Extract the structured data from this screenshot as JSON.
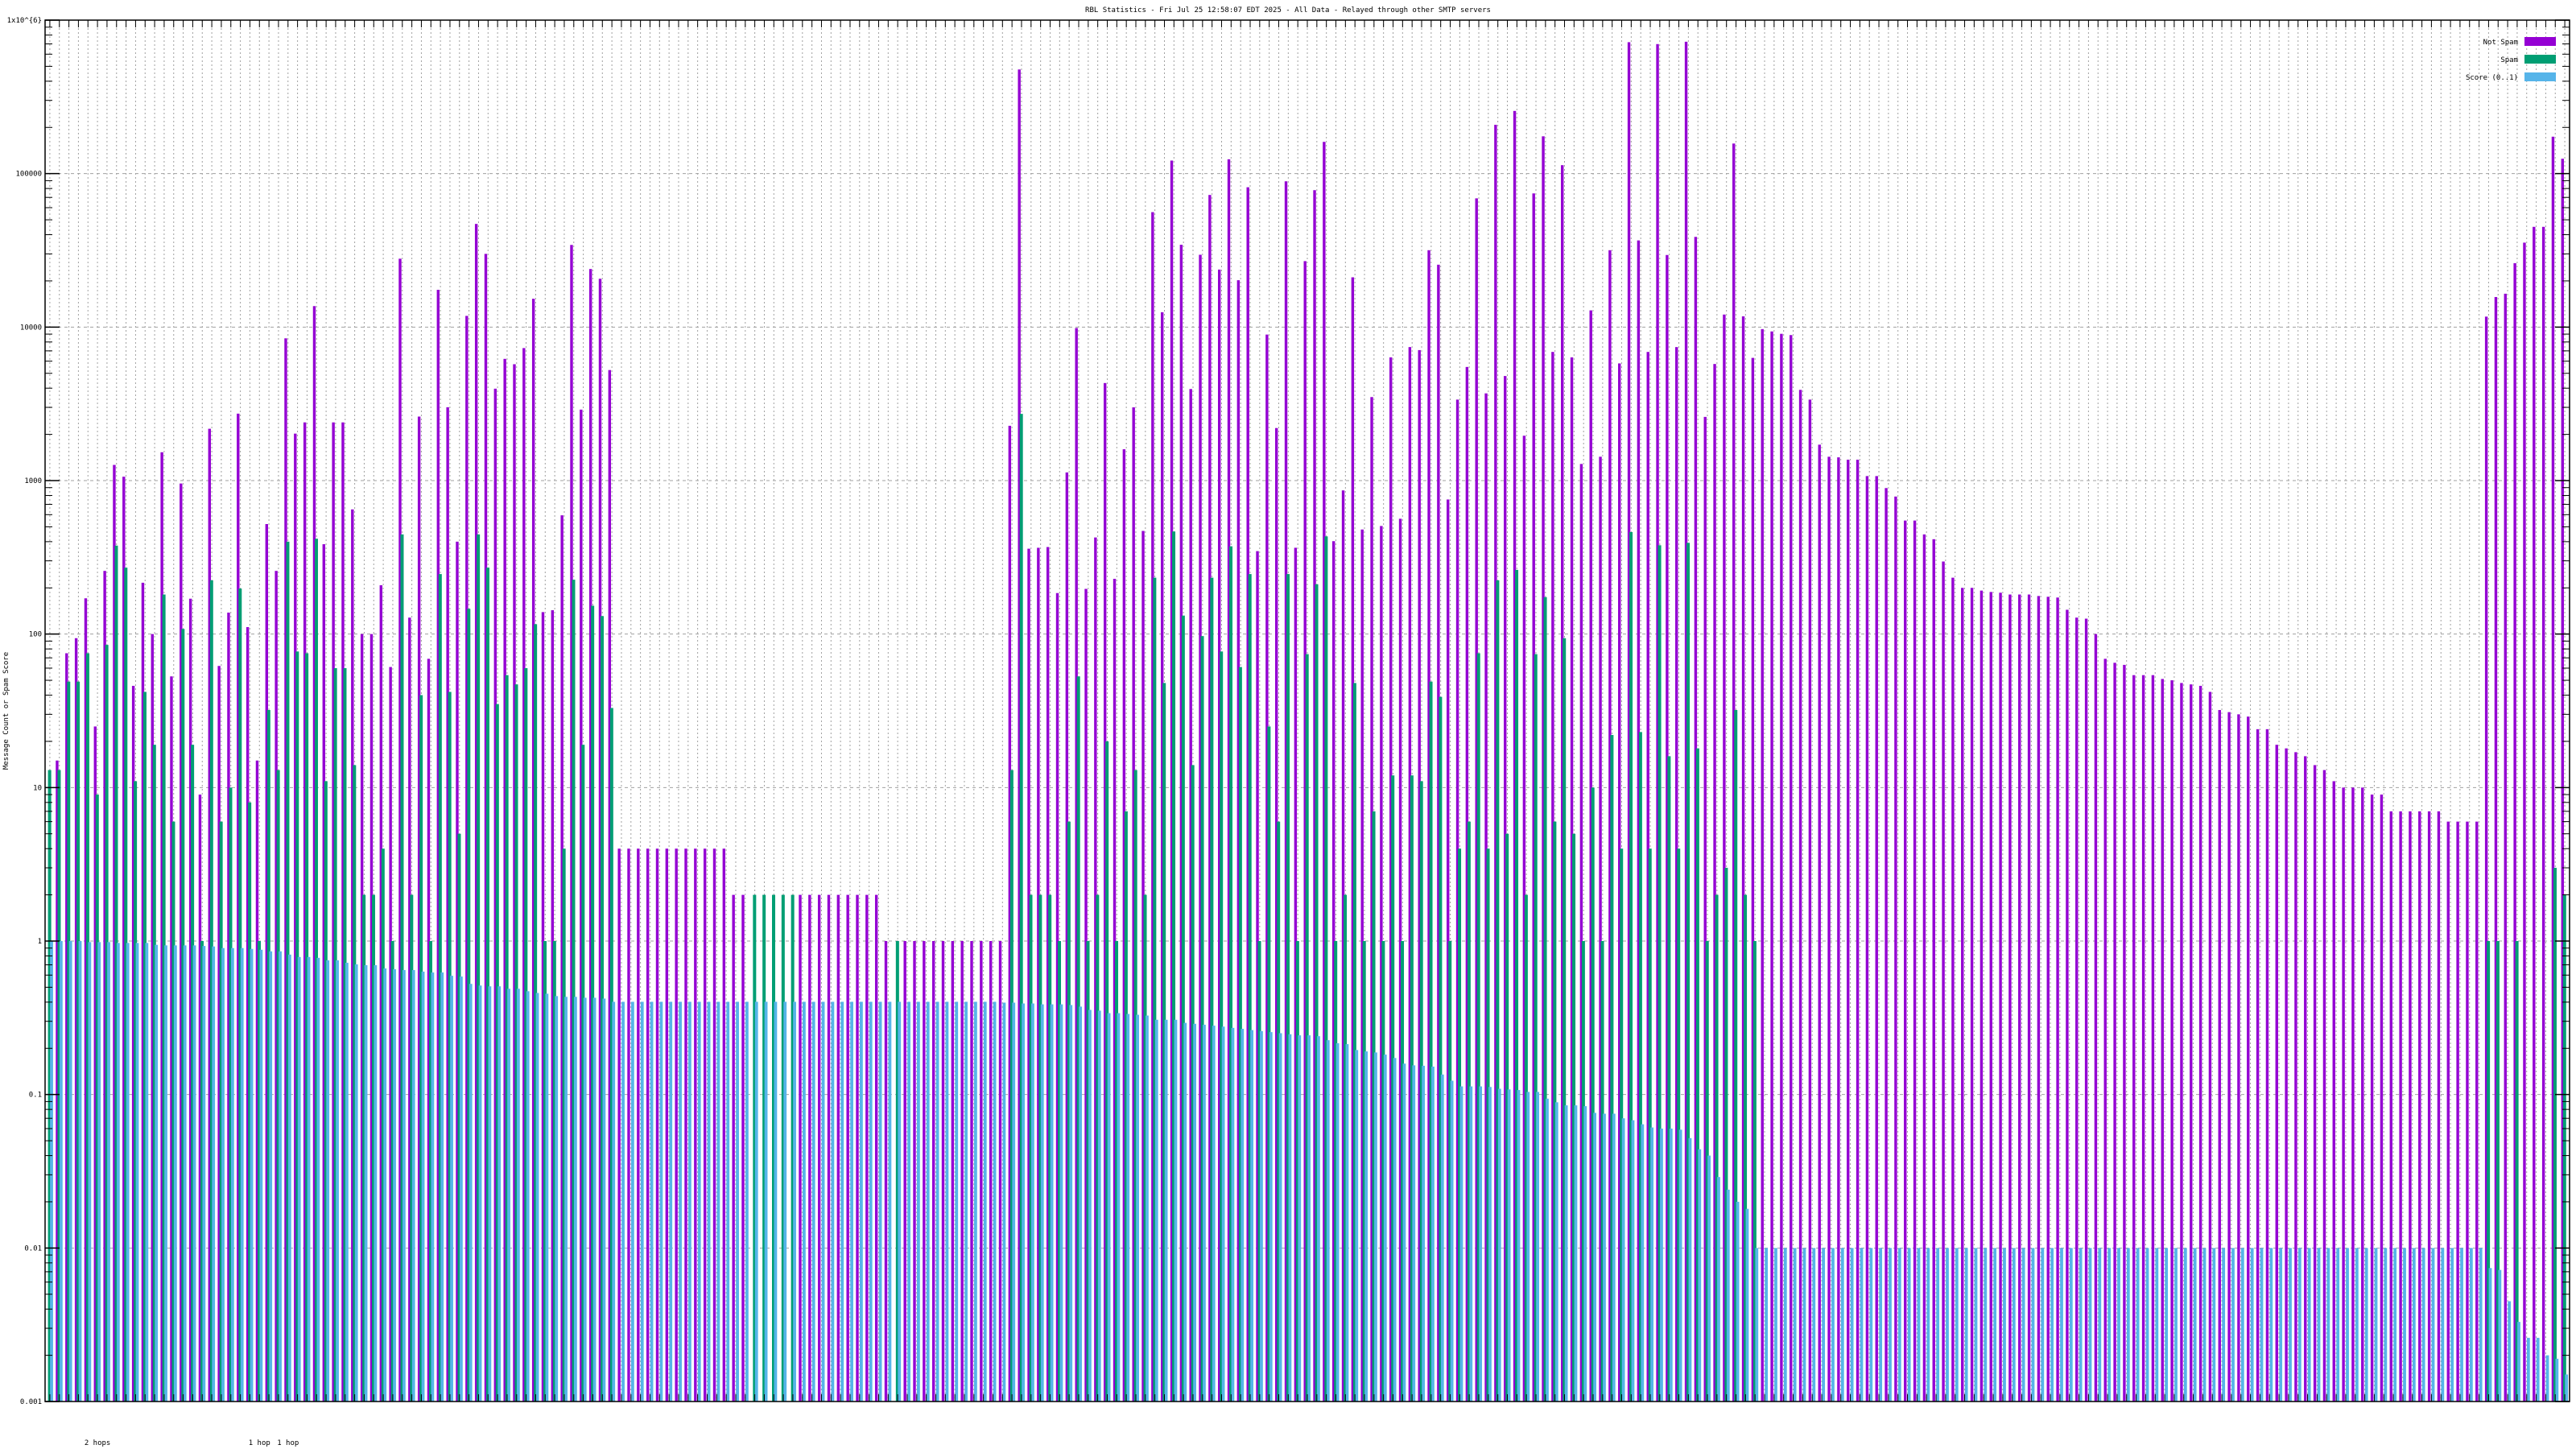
{
  "chart_data": {
    "type": "bar",
    "title": "RBL Statistics - Fri Jul 25 12:58:07 EDT 2025 - All Data - Relayed through other SMTP servers",
    "ylabel": "Message Count or Spam Score",
    "xlabel": "",
    "y_scale": "log",
    "ylim": [
      0.001,
      1000000
    ],
    "y_tick_labels": [
      "0.001",
      "0.01",
      "0.1",
      "1",
      "10",
      "100",
      "1000",
      "10000",
      "100000",
      "1x10^{6}"
    ],
    "grid": true,
    "legend_position": "top-right",
    "x_group_labels": [
      {
        "text": "2 hops",
        "category": 6
      },
      {
        "text": "1 hop",
        "category": 23
      },
      {
        "text": "1 hop",
        "category": 26
      }
    ],
    "colors": {
      "not_spam": "#9400d3",
      "spam": "#009e73",
      "score": "#56b4e9"
    },
    "series": [
      {
        "name": "Not Spam",
        "key": "not_spam",
        "values": [
          null,
          15,
          75,
          94,
          171,
          25,
          258,
          1265,
          1060,
          46,
          216,
          100,
          1530,
          53,
          957,
          170,
          9,
          2176,
          62,
          138,
          2730,
          111,
          15,
          521,
          258,
          8450,
          2023,
          2394,
          13700,
          385,
          2394,
          2394,
          649,
          100,
          100,
          208,
          61,
          27900,
          128,
          2612,
          69,
          17500,
          3006,
          400,
          11830,
          47000,
          30000,
          3970,
          6210,
          5730,
          7300,
          15300,
          139,
          143,
          594,
          34300,
          2900,
          23900,
          20650,
          5250,
          4,
          4,
          4,
          4,
          4,
          4,
          4,
          4,
          4,
          4,
          4,
          4,
          2,
          2,
          null,
          null,
          null,
          null,
          null,
          2,
          2,
          2,
          2,
          2,
          2,
          2,
          2,
          2,
          1,
          null,
          1,
          1,
          1,
          1,
          1,
          1,
          1,
          1,
          1,
          1,
          1,
          2275,
          477000,
          360,
          365,
          369,
          185,
          1130,
          9860,
          197,
          426,
          4320,
          229,
          1600,
          3000,
          470,
          56100,
          12500,
          121600,
          34400,
          3950,
          29600,
          72600,
          23700,
          124000,
          20200,
          81500,
          347,
          8940,
          2200,
          89100,
          365,
          26900,
          78000,
          161000,
          403,
          863,
          21100,
          480,
          3500,
          506,
          6350,
          564,
          7410,
          7080,
          31700,
          25500,
          753,
          3370,
          5500,
          69000,
          3700,
          208000,
          4800,
          256000,
          1960,
          74300,
          175000,
          6890,
          113500,
          6350,
          1283,
          12850,
          1430,
          31700,
          5800,
          718000,
          36700,
          6890,
          698000,
          29500,
          7410,
          723000,
          38700,
          2600,
          5750,
          12070,
          157000,
          11750,
          6300,
          9700,
          9370,
          9040,
          8870,
          3900,
          3370,
          1714,
          1430,
          1417,
          1368,
          1368,
          1070,
          1070,
          894,
          787,
          549,
          549,
          446,
          415,
          297,
          233,
          200,
          200,
          192,
          188,
          186,
          181,
          181,
          181,
          177,
          175,
          173,
          144,
          128,
          126,
          100,
          69,
          65,
          63,
          54,
          54,
          54,
          51,
          50,
          48,
          47,
          46,
          42,
          32,
          31,
          30,
          29,
          24,
          24,
          19,
          18,
          17,
          16,
          14,
          13,
          11,
          10,
          10,
          10,
          9,
          9,
          7,
          7,
          7,
          7,
          7,
          7,
          6,
          6,
          6,
          6,
          11700,
          15700,
          16500,
          26100,
          35500,
          45000,
          45000,
          174000,
          125000
        ]
      },
      {
        "name": "Spam",
        "key": "spam",
        "values": [
          13,
          13,
          49,
          49,
          75,
          9,
          85,
          377,
          271,
          11,
          42,
          19,
          181,
          6,
          108,
          19,
          1,
          224,
          6,
          10,
          198,
          8,
          1,
          32,
          13,
          400,
          77,
          75,
          418,
          11,
          60,
          60,
          14,
          2,
          2,
          4,
          1,
          446,
          2,
          40,
          1,
          246,
          42,
          5,
          146,
          446,
          271,
          35,
          54,
          47,
          60,
          116,
          1,
          1,
          4,
          226,
          19,
          153,
          131,
          33,
          null,
          null,
          null,
          null,
          null,
          null,
          null,
          null,
          null,
          null,
          null,
          null,
          null,
          null,
          2,
          2,
          2,
          2,
          2,
          null,
          null,
          null,
          null,
          null,
          null,
          null,
          null,
          null,
          null,
          1,
          null,
          null,
          null,
          null,
          null,
          null,
          null,
          null,
          null,
          null,
          null,
          13,
          2720,
          2,
          2,
          2,
          1,
          6,
          53,
          1,
          2,
          20,
          1,
          7,
          13,
          2,
          233,
          48,
          466,
          132,
          14,
          97,
          233,
          77,
          373,
          61,
          246,
          1,
          25,
          6,
          246,
          1,
          74,
          211,
          433,
          1,
          2,
          48,
          1,
          7,
          1,
          12,
          1,
          12,
          11,
          49,
          39,
          1,
          4,
          6,
          75,
          4,
          224,
          5,
          262,
          2,
          74,
          174,
          6,
          94,
          5,
          1,
          10,
          1,
          22,
          4,
          462,
          23,
          4,
          379,
          16,
          4,
          393,
          18,
          1,
          2,
          3,
          32,
          2,
          1,
          null,
          null,
          null,
          null,
          null,
          null,
          null,
          null,
          null,
          null,
          null,
          null,
          null,
          null,
          null,
          null,
          null,
          null,
          null,
          null,
          null,
          null,
          null,
          null,
          null,
          null,
          null,
          null,
          null,
          null,
          null,
          null,
          null,
          null,
          null,
          null,
          null,
          null,
          null,
          null,
          null,
          null,
          null,
          null,
          null,
          null,
          null,
          null,
          null,
          null,
          null,
          null,
          null,
          null,
          null,
          null,
          null,
          null,
          null,
          null,
          null,
          null,
          null,
          null,
          null,
          null,
          null,
          null,
          null,
          null,
          null,
          null,
          null,
          null,
          null,
          null,
          1,
          1,
          null,
          1,
          null,
          null,
          null,
          3,
          2
        ]
      },
      {
        "name": "Score (0..1)",
        "key": "score",
        "values": [
          1,
          1,
          1,
          1,
          0.984,
          0.984,
          0.984,
          0.972,
          0.972,
          0.972,
          0.972,
          0.945,
          0.937,
          0.937,
          0.937,
          0.937,
          0.929,
          0.922,
          0.9,
          0.9,
          0.9,
          0.889,
          0.878,
          0.857,
          0.857,
          0.816,
          0.787,
          0.787,
          0.777,
          0.749,
          0.749,
          0.722,
          0.705,
          0.696,
          0.696,
          0.663,
          0.655,
          0.647,
          0.647,
          0.632,
          0.624,
          0.624,
          0.594,
          0.587,
          0.526,
          0.513,
          0.507,
          0.507,
          0.489,
          0.489,
          0.471,
          0.459,
          0.454,
          0.438,
          0.433,
          0.433,
          0.427,
          0.427,
          0.422,
          0.402,
          0.402,
          0.402,
          0.402,
          0.402,
          0.402,
          0.402,
          0.402,
          0.402,
          0.402,
          0.402,
          0.402,
          0.402,
          0.402,
          0.402,
          0.402,
          0.402,
          0.402,
          0.402,
          0.402,
          0.402,
          0.402,
          0.402,
          0.402,
          0.402,
          0.402,
          0.402,
          0.402,
          0.402,
          0.402,
          0.402,
          0.402,
          0.402,
          0.402,
          0.402,
          0.402,
          0.402,
          0.402,
          0.402,
          0.402,
          0.402,
          0.397,
          0.397,
          0.392,
          0.392,
          0.387,
          0.387,
          0.387,
          0.383,
          0.374,
          0.356,
          0.352,
          0.339,
          0.339,
          0.335,
          0.331,
          0.327,
          0.307,
          0.307,
          0.307,
          0.293,
          0.289,
          0.285,
          0.281,
          0.277,
          0.272,
          0.268,
          0.263,
          0.259,
          0.255,
          0.251,
          0.247,
          0.243,
          0.243,
          0.24,
          0.226,
          0.216,
          0.213,
          0.195,
          0.191,
          0.188,
          0.182,
          0.173,
          0.159,
          0.155,
          0.154,
          0.152,
          0.135,
          0.123,
          0.113,
          0.113,
          0.113,
          0.112,
          0.109,
          0.108,
          0.107,
          0.104,
          0.104,
          0.094,
          0.089,
          0.085,
          0.085,
          0.084,
          0.076,
          0.075,
          0.075,
          0.07,
          0.068,
          0.064,
          0.061,
          0.06,
          0.06,
          0.059,
          0.052,
          0.044,
          0.04,
          0.029,
          0.024,
          0.02,
          0.018,
          0.01,
          0.01,
          0.01,
          0.01,
          0.01,
          0.01,
          0.01,
          0.01,
          0.01,
          0.01,
          0.01,
          0.01,
          0.01,
          0.01,
          0.01,
          0.01,
          0.01,
          0.01,
          0.01,
          0.01,
          0.01,
          0.01,
          0.01,
          0.01,
          0.01,
          0.01,
          0.01,
          0.01,
          0.01,
          0.01,
          0.01,
          0.01,
          0.01,
          0.01,
          0.01,
          0.01,
          0.01,
          0.01,
          0.01,
          0.01,
          0.01,
          0.01,
          0.01,
          0.01,
          0.01,
          0.01,
          0.01,
          0.01,
          0.01,
          0.01,
          0.01,
          0.01,
          0.01,
          0.01,
          0.01,
          0.01,
          0.01,
          0.01,
          0.01,
          0.01,
          0.01,
          0.01,
          0.01,
          0.01,
          0.01,
          0.01,
          0.01,
          0.01,
          0.01,
          0.01,
          0.01,
          0.01,
          0.01,
          0.01,
          0.01,
          0.01,
          0.01,
          0.0074,
          0.0072,
          0.0045,
          0.0033,
          0.0026,
          0.0026,
          0.002,
          0.0019,
          0.0015
        ]
      }
    ]
  }
}
